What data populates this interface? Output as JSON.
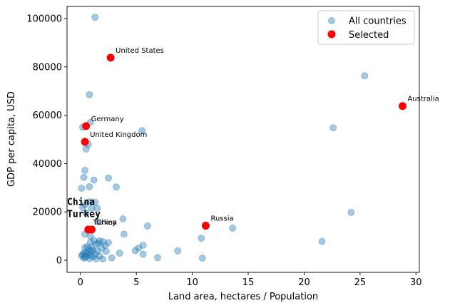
{
  "chart_data": {
    "type": "scatter",
    "title": "",
    "xlabel": "Land area, hectares / Population",
    "ylabel": "GDP per capita, USD",
    "xlim": [
      -1.2,
      30.3
    ],
    "ylim": [
      -5000,
      105000
    ],
    "xticks": [
      0,
      5,
      10,
      15,
      20,
      25,
      30
    ],
    "yticks": [
      0,
      20000,
      40000,
      60000,
      80000,
      100000
    ],
    "grid": false,
    "legend_position": "top-right",
    "colors": {
      "all": "#1f77b4",
      "selected": "#ff0000"
    },
    "series": [
      {
        "name": "All countries",
        "points": [
          [
            1.3,
            100500
          ],
          [
            25.4,
            76300
          ],
          [
            0.8,
            68500
          ],
          [
            0.9,
            57000
          ],
          [
            0.2,
            55000
          ],
          [
            22.6,
            54800
          ],
          [
            5.5,
            53600
          ],
          [
            0.7,
            48000
          ],
          [
            0.5,
            46000
          ],
          [
            0.4,
            37200
          ],
          [
            1.2,
            33200
          ],
          [
            0.3,
            34300
          ],
          [
            2.5,
            34000
          ],
          [
            0.8,
            30400
          ],
          [
            3.2,
            30300
          ],
          [
            0.1,
            29800
          ],
          [
            0.8,
            24200
          ],
          [
            1.3,
            24000
          ],
          [
            0.4,
            23000
          ],
          [
            0.2,
            21800
          ],
          [
            1.0,
            21500
          ],
          [
            1.5,
            21500
          ],
          [
            24.2,
            19800
          ],
          [
            0.5,
            19500
          ],
          [
            3.8,
            17100
          ],
          [
            1.5,
            16000
          ],
          [
            6.0,
            14200
          ],
          [
            13.6,
            13300
          ],
          [
            0.7,
            12500
          ],
          [
            0.4,
            10800
          ],
          [
            3.9,
            10800
          ],
          [
            0.9,
            10000
          ],
          [
            10.8,
            9100
          ],
          [
            1.2,
            8200
          ],
          [
            1.7,
            8000
          ],
          [
            2.0,
            7700
          ],
          [
            2.5,
            7300
          ],
          [
            1.6,
            7100
          ],
          [
            21.6,
            7800
          ],
          [
            0.9,
            7500
          ],
          [
            1.4,
            6700
          ],
          [
            2.2,
            6200
          ],
          [
            0.6,
            5600
          ],
          [
            1.0,
            5400
          ],
          [
            0.4,
            5200
          ],
          [
            1.9,
            5000
          ],
          [
            5.6,
            6200
          ],
          [
            5.2,
            5100
          ],
          [
            0.8,
            4500
          ],
          [
            1.1,
            4100
          ],
          [
            1.5,
            3900
          ],
          [
            0.9,
            3500
          ],
          [
            0.5,
            3300
          ],
          [
            2.3,
            3700
          ],
          [
            4.9,
            4000
          ],
          [
            8.7,
            3900
          ],
          [
            0.3,
            3000
          ],
          [
            0.6,
            2800
          ],
          [
            1.3,
            2600
          ],
          [
            3.5,
            2900
          ],
          [
            5.6,
            2500
          ],
          [
            0.2,
            2300
          ],
          [
            0.9,
            2100
          ],
          [
            1.7,
            1800
          ],
          [
            0.5,
            1600
          ],
          [
            1.1,
            1400
          ],
          [
            6.9,
            1100
          ],
          [
            0.4,
            1200
          ],
          [
            2.8,
            1000
          ],
          [
            10.9,
            900
          ],
          [
            0.3,
            900
          ],
          [
            0.8,
            700
          ],
          [
            1.4,
            600
          ],
          [
            2.0,
            500
          ],
          [
            0.1,
            1900
          ]
        ]
      },
      {
        "name": "Selected",
        "points": [
          [
            2.7,
            83800,
            "United States"
          ],
          [
            28.8,
            63800,
            "Australia"
          ],
          [
            0.5,
            55500,
            "Germany"
          ],
          [
            0.4,
            49000,
            "United Kingdom"
          ],
          [
            11.2,
            14300,
            "Russia"
          ],
          [
            0.7,
            12700,
            "Turkey"
          ],
          [
            1.0,
            12700,
            "China"
          ]
        ]
      }
    ],
    "annotations": [
      {
        "text": "United States",
        "x": 2.7,
        "y": 83800
      },
      {
        "text": "Australia",
        "x": 28.8,
        "y": 63800
      },
      {
        "text": "Germany",
        "x": 0.5,
        "y": 55500
      },
      {
        "text": "United Kingdom",
        "x": 0.4,
        "y": 49000
      },
      {
        "text": "Russia",
        "x": 11.2,
        "y": 14300
      },
      {
        "text": "Turkey",
        "x": 0.7,
        "y": 12700
      },
      {
        "text": "China",
        "x": 1.0,
        "y": 12700
      }
    ],
    "handwritten_labels": [
      {
        "text": "China",
        "x": -1.2,
        "y": 22800
      },
      {
        "text": "Turkey",
        "x": -1.2,
        "y": 17800
      }
    ]
  }
}
